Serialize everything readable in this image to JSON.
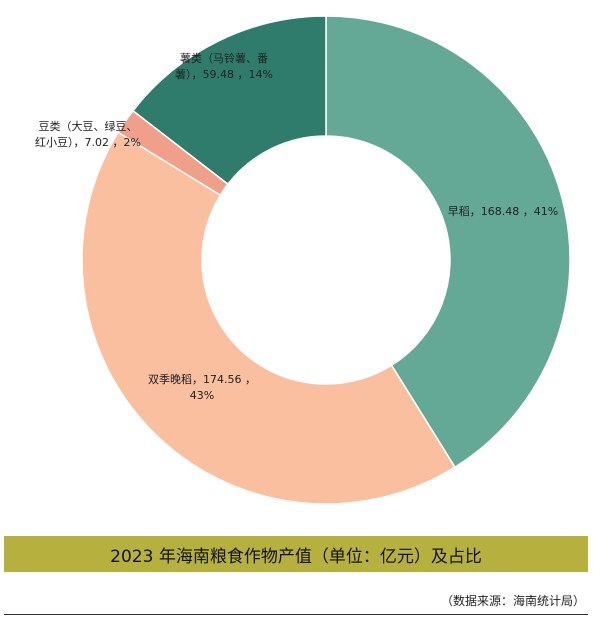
{
  "chart_data": {
    "type": "pie",
    "donut": true,
    "title": "2023 年海南粮食作物产值（单位：亿元）及占比",
    "source": "（数据来源：海南统计局）",
    "slices": [
      {
        "name": "早稻",
        "value": 168.48,
        "percent": "41%",
        "label": [
          "早稻，168.48 ，41%"
        ],
        "color": "#64a896"
      },
      {
        "name": "双季晚稻",
        "value": 174.56,
        "percent": "43%",
        "label": [
          "双季晚稻，174.56 ，",
          "43%"
        ],
        "color": "#f9bf9f"
      },
      {
        "name": "豆类（大豆、绿豆、红小豆）",
        "value": 7.02,
        "percent": "2%",
        "label": [
          "豆类（大豆、绿豆、",
          "红小豆），7.02 ，2%"
        ],
        "color": "#f0a08a"
      },
      {
        "name": "薯类（马铃薯、番薯）",
        "value": 59.48,
        "percent": "14%",
        "label": [
          "薯类（马铃薯、番",
          "薯），59.48 ，14%"
        ],
        "color": "#2f7c6c"
      }
    ]
  }
}
